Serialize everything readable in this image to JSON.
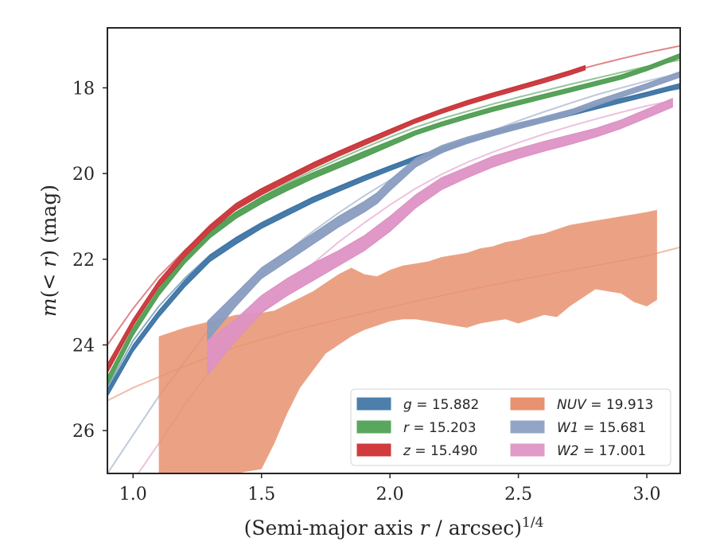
{
  "chart_data": {
    "type": "line",
    "title": "",
    "xlabel": "(Semi-major axis r / arcsec)^1/4",
    "ylabel": "m(< r) (mag)",
    "xlim": [
      0.9,
      3.13
    ],
    "ylim": [
      27.0,
      16.6
    ],
    "y_inverted": true,
    "x_ticks": [
      1.0,
      1.5,
      2.0,
      2.5,
      3.0
    ],
    "x_tick_labels": [
      "1.0",
      "1.5",
      "2.0",
      "2.5",
      "3.0"
    ],
    "y_ticks": [
      18,
      20,
      22,
      24,
      26
    ],
    "y_tick_labels": [
      "18",
      "20",
      "22",
      "24",
      "26"
    ],
    "grid": false,
    "legend_position": "lower-right",
    "legend": [
      {
        "label": "g = 15.882",
        "color": "#4c7fab"
      },
      {
        "label": "NUV = 19.913",
        "color": "#e8926f"
      },
      {
        "label": "r = 15.203",
        "color": "#59a75c"
      },
      {
        "label": "W1 = 15.681",
        "color": "#93a5c7"
      },
      {
        "label": "z = 15.490",
        "color": "#d03b3e"
      },
      {
        "label": "W2 = 17.001",
        "color": "#e09ac8"
      }
    ],
    "series": [
      {
        "name": "g",
        "color": "#3d74a4",
        "kind": "band",
        "x": [
          0.9,
          1.0,
          1.1,
          1.2,
          1.3,
          1.4,
          1.5,
          1.6,
          1.7,
          1.8,
          1.9,
          2.0,
          2.1,
          2.2,
          2.3,
          2.4,
          2.5,
          2.6,
          2.7,
          2.8,
          2.9,
          3.0,
          3.13
        ],
        "y_upper": [
          25.05,
          24.0,
          23.2,
          22.5,
          21.9,
          21.5,
          21.15,
          20.85,
          20.55,
          20.3,
          20.05,
          19.82,
          19.6,
          19.4,
          19.2,
          19.02,
          18.85,
          18.7,
          18.55,
          18.4,
          18.25,
          18.1,
          17.9
        ],
        "y_lower": [
          25.2,
          24.15,
          23.35,
          22.65,
          22.05,
          21.65,
          21.28,
          20.98,
          20.68,
          20.42,
          20.17,
          19.93,
          19.7,
          19.5,
          19.3,
          19.12,
          18.95,
          18.8,
          18.65,
          18.5,
          18.35,
          18.2,
          18.0
        ]
      },
      {
        "name": "r",
        "color": "#4f9e52",
        "kind": "band",
        "x": [
          0.9,
          1.0,
          1.1,
          1.2,
          1.3,
          1.4,
          1.5,
          1.6,
          1.7,
          1.8,
          1.9,
          2.0,
          2.1,
          2.2,
          2.3,
          2.4,
          2.5,
          2.6,
          2.7,
          2.8,
          2.9,
          3.0,
          3.13
        ],
        "y_upper": [
          24.75,
          23.6,
          22.7,
          21.95,
          21.35,
          20.9,
          20.55,
          20.25,
          19.98,
          19.73,
          19.48,
          19.24,
          19.0,
          18.8,
          18.62,
          18.45,
          18.3,
          18.15,
          18.0,
          17.85,
          17.7,
          17.5,
          17.2
        ],
        "y_lower": [
          24.95,
          23.78,
          22.85,
          22.1,
          21.5,
          21.05,
          20.7,
          20.4,
          20.12,
          19.87,
          19.62,
          19.36,
          19.1,
          18.9,
          18.72,
          18.55,
          18.4,
          18.25,
          18.1,
          17.95,
          17.8,
          17.6,
          17.3
        ]
      },
      {
        "name": "z",
        "color": "#c9363a",
        "kind": "band",
        "x": [
          0.9,
          1.0,
          1.1,
          1.2,
          1.3,
          1.4,
          1.5,
          1.6,
          1.7,
          1.8,
          1.9,
          2.0,
          2.1,
          2.2,
          2.3,
          2.4,
          2.5,
          2.6,
          2.7,
          2.76
        ],
        "y_upper": [
          24.45,
          23.4,
          22.5,
          21.8,
          21.2,
          20.7,
          20.35,
          20.05,
          19.75,
          19.48,
          19.22,
          18.97,
          18.72,
          18.5,
          18.3,
          18.12,
          17.95,
          17.78,
          17.6,
          17.48
        ],
        "y_lower": [
          24.65,
          23.55,
          22.65,
          21.95,
          21.35,
          20.85,
          20.5,
          20.18,
          19.88,
          19.6,
          19.34,
          19.08,
          18.82,
          18.6,
          18.4,
          18.22,
          18.05,
          17.88,
          17.7,
          17.58
        ]
      },
      {
        "name": "W1",
        "color": "#8a9dc0",
        "kind": "band",
        "x": [
          1.29,
          1.4,
          1.5,
          1.6,
          1.7,
          1.8,
          1.9,
          1.95,
          2.0,
          2.1,
          2.2,
          2.3,
          2.4,
          2.5,
          2.6,
          2.7,
          2.8,
          2.9,
          3.0,
          3.13
        ],
        "y_upper": [
          23.45,
          22.8,
          22.2,
          21.8,
          21.4,
          21.0,
          20.65,
          20.45,
          20.15,
          19.65,
          19.35,
          19.15,
          18.98,
          18.82,
          18.68,
          18.52,
          18.3,
          18.1,
          17.9,
          17.62
        ],
        "y_lower": [
          23.9,
          23.1,
          22.45,
          22.05,
          21.65,
          21.25,
          20.9,
          20.7,
          20.4,
          19.85,
          19.52,
          19.3,
          19.12,
          18.96,
          18.8,
          18.64,
          18.42,
          18.22,
          18.02,
          17.75
        ]
      },
      {
        "name": "W2",
        "color": "#dd92c4",
        "kind": "band",
        "x": [
          1.29,
          1.4,
          1.5,
          1.6,
          1.7,
          1.8,
          1.9,
          2.0,
          2.1,
          2.2,
          2.3,
          2.4,
          2.5,
          2.6,
          2.7,
          2.8,
          2.9,
          3.0,
          3.1
        ],
        "y_upper": [
          23.9,
          23.4,
          22.85,
          22.45,
          22.1,
          21.8,
          21.45,
          21.0,
          20.5,
          20.1,
          19.85,
          19.6,
          19.42,
          19.25,
          19.1,
          18.95,
          18.75,
          18.5,
          18.25
        ],
        "y_lower": [
          24.7,
          23.9,
          23.25,
          22.85,
          22.5,
          22.15,
          21.8,
          21.35,
          20.8,
          20.38,
          20.1,
          19.85,
          19.65,
          19.48,
          19.32,
          19.15,
          18.95,
          18.7,
          18.45
        ]
      },
      {
        "name": "NUV",
        "color": "#e8926f",
        "kind": "band",
        "x": [
          1.1,
          1.2,
          1.3,
          1.4,
          1.5,
          1.55,
          1.6,
          1.65,
          1.7,
          1.75,
          1.8,
          1.85,
          1.9,
          1.95,
          2.0,
          2.05,
          2.1,
          2.15,
          2.2,
          2.25,
          2.3,
          2.35,
          2.4,
          2.45,
          2.5,
          2.55,
          2.6,
          2.65,
          2.7,
          2.75,
          2.8,
          2.85,
          2.9,
          2.95,
          3.0,
          3.04
        ],
        "y_upper": [
          23.8,
          23.6,
          23.45,
          23.3,
          23.25,
          23.2,
          23.05,
          22.9,
          22.75,
          22.55,
          22.35,
          22.2,
          22.35,
          22.4,
          22.25,
          22.15,
          22.1,
          22.05,
          21.95,
          21.9,
          21.85,
          21.75,
          21.7,
          21.6,
          21.55,
          21.45,
          21.4,
          21.3,
          21.2,
          21.15,
          21.1,
          21.05,
          21.0,
          20.95,
          20.9,
          20.85
        ],
        "y_lower": [
          27.0,
          27.0,
          27.0,
          27.0,
          26.9,
          26.3,
          25.6,
          25.0,
          24.6,
          24.2,
          24.0,
          23.8,
          23.65,
          23.55,
          23.45,
          23.4,
          23.4,
          23.45,
          23.5,
          23.55,
          23.6,
          23.5,
          23.45,
          23.4,
          23.5,
          23.4,
          23.3,
          23.35,
          23.1,
          22.9,
          22.7,
          22.75,
          22.8,
          23.0,
          23.1,
          22.95
        ]
      }
    ],
    "models": [
      {
        "name": "g",
        "color": "#3d74a4",
        "x": [
          0.9,
          1.0,
          1.1,
          1.2,
          1.3,
          1.4,
          1.5,
          1.6,
          1.7,
          1.8,
          1.9,
          2.0,
          2.1,
          2.2,
          2.3,
          2.4,
          2.5,
          2.6,
          2.7,
          2.8,
          2.9,
          3.0,
          3.13
        ],
        "y": [
          25.0,
          23.9,
          23.1,
          22.45,
          21.9,
          21.5,
          21.15,
          20.85,
          20.57,
          20.32,
          20.08,
          19.85,
          19.63,
          19.42,
          19.22,
          19.03,
          18.85,
          18.68,
          18.52,
          18.38,
          18.25,
          18.13,
          18.02
        ]
      },
      {
        "name": "r",
        "color": "#4f9e52",
        "x": [
          0.9,
          1.0,
          1.1,
          1.2,
          1.3,
          1.4,
          1.5,
          1.6,
          1.7,
          1.8,
          1.9,
          2.0,
          2.1,
          2.2,
          2.3,
          2.4,
          2.5,
          2.6,
          2.7,
          2.8,
          2.9,
          3.0,
          3.13
        ],
        "y": [
          24.6,
          23.5,
          22.65,
          21.95,
          21.38,
          20.92,
          20.55,
          20.22,
          19.93,
          19.66,
          19.4,
          19.15,
          18.92,
          18.72,
          18.55,
          18.38,
          18.22,
          18.07,
          17.92,
          17.78,
          17.64,
          17.5,
          17.35
        ]
      },
      {
        "name": "z",
        "color": "#c9363a",
        "x": [
          0.9,
          1.0,
          1.1,
          1.2,
          1.3,
          1.4,
          1.5,
          1.6,
          1.7,
          1.8,
          1.9,
          2.0,
          2.1,
          2.2,
          2.3,
          2.4,
          2.5,
          2.6,
          2.7,
          2.8,
          2.9,
          3.0,
          3.13
        ],
        "y": [
          24.0,
          23.15,
          22.4,
          21.8,
          21.25,
          20.8,
          20.42,
          20.08,
          19.78,
          19.5,
          19.24,
          18.99,
          18.76,
          18.55,
          18.35,
          18.16,
          17.98,
          17.8,
          17.63,
          17.47,
          17.32,
          17.18,
          17.02
        ]
      },
      {
        "name": "W1",
        "color": "#93a5c7",
        "x": [
          0.9,
          1.0,
          1.1,
          1.2,
          1.3,
          1.4,
          1.5,
          1.6,
          1.7,
          1.8,
          1.9,
          2.0,
          2.1,
          2.2,
          2.3,
          2.4,
          2.5,
          2.6,
          2.7,
          2.8,
          2.9,
          3.0,
          3.13
        ],
        "y": [
          27.0,
          26.1,
          25.2,
          24.4,
          23.6,
          22.95,
          22.35,
          21.82,
          21.35,
          20.92,
          20.52,
          20.15,
          19.82,
          19.52,
          19.25,
          19.0,
          18.77,
          18.56,
          18.36,
          18.17,
          18.0,
          17.84,
          17.66
        ]
      },
      {
        "name": "W2",
        "color": "#e09ac8",
        "x": [
          1.02,
          1.1,
          1.2,
          1.3,
          1.4,
          1.5,
          1.6,
          1.7,
          1.8,
          1.9,
          2.0,
          2.1,
          2.2,
          2.3,
          2.4,
          2.5,
          2.6,
          2.7,
          2.8,
          2.9,
          3.0,
          3.1
        ],
        "y": [
          27.0,
          26.3,
          25.4,
          24.6,
          23.9,
          23.25,
          22.65,
          22.1,
          21.6,
          21.15,
          20.73,
          20.35,
          20.02,
          19.74,
          19.5,
          19.28,
          19.08,
          18.9,
          18.73,
          18.57,
          18.42,
          18.3
        ]
      },
      {
        "name": "NUV",
        "color": "#e8926f",
        "x": [
          0.9,
          1.0,
          1.2,
          1.4,
          1.6,
          1.8,
          2.0,
          2.2,
          2.4,
          2.6,
          2.8,
          3.0,
          3.13
        ],
        "y": [
          25.3,
          25.0,
          24.5,
          24.05,
          23.7,
          23.4,
          23.12,
          22.85,
          22.6,
          22.37,
          22.15,
          21.92,
          21.72
        ]
      }
    ]
  }
}
